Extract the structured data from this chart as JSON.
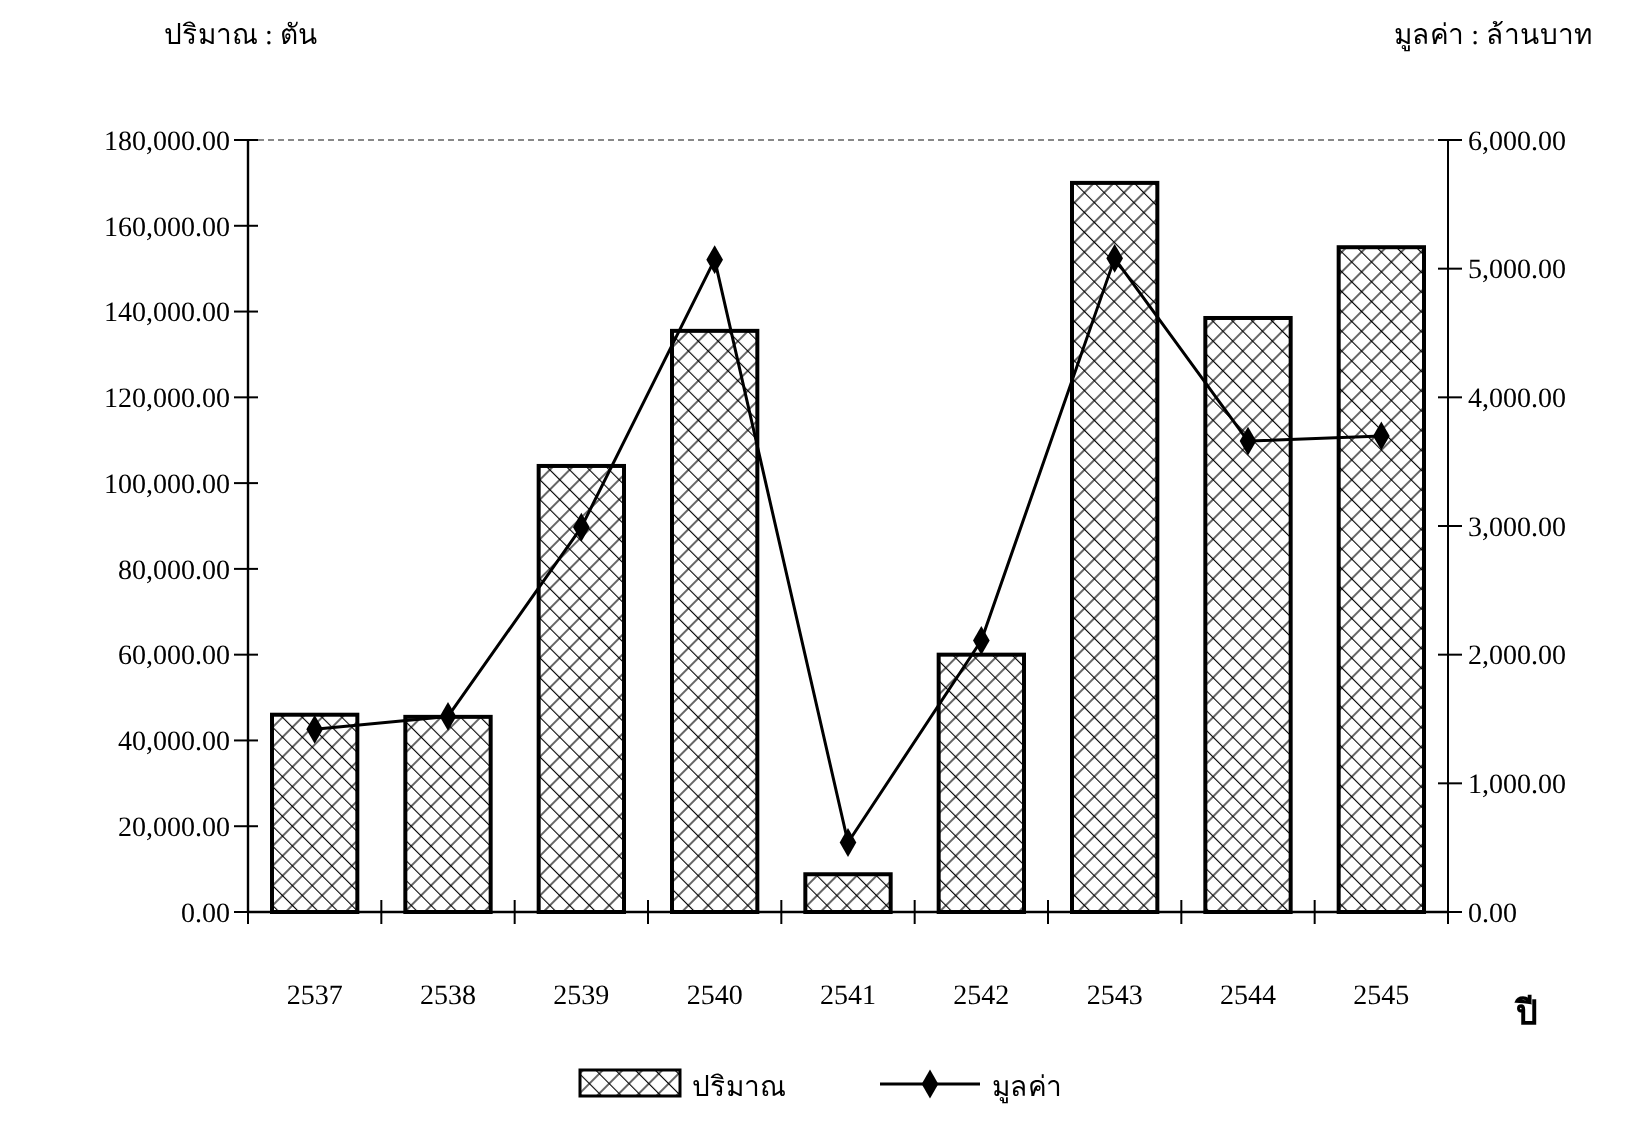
{
  "chart_data": {
    "type": "bar",
    "ylabel": "ปริมาณ : ตัน",
    "y2label": "มูลค่า : ล้านบาท",
    "xlabel": "ปี",
    "categories": [
      "2537",
      "2538",
      "2539",
      "2540",
      "2541",
      "2542",
      "2543",
      "2544",
      "2545"
    ],
    "series": [
      {
        "name": "ปริมาณ",
        "color": "#000000",
        "values": [
          46000,
          45500,
          104000,
          135500,
          8800,
          60000,
          170000,
          138500,
          155000
        ]
      },
      {
        "name": "มูลค่า",
        "type": "line",
        "axis": "y2",
        "color": "#000000",
        "marker": "diamond",
        "values": [
          1420,
          1520,
          2990,
          5070,
          540,
          2110,
          5080,
          3660,
          3700
        ]
      }
    ],
    "ylim": [
      0,
      180000
    ],
    "yticks": [
      {
        "value": 0,
        "label": "0.00"
      },
      {
        "value": 20000,
        "label": "20,000.00"
      },
      {
        "value": 40000,
        "label": "40,000.00"
      },
      {
        "value": 60000,
        "label": "60,000.00"
      },
      {
        "value": 80000,
        "label": "80,000.00"
      },
      {
        "value": 100000,
        "label": "100,000.00"
      },
      {
        "value": 120000,
        "label": "120,000.00"
      },
      {
        "value": 140000,
        "label": "140,000.00"
      },
      {
        "value": 160000,
        "label": "160,000.00"
      },
      {
        "value": 180000,
        "label": "180,000.00"
      }
    ],
    "y2lim": [
      0,
      6000
    ],
    "y2ticks": [
      {
        "value": 0,
        "label": "0.00"
      },
      {
        "value": 1000,
        "label": "1,000.00"
      },
      {
        "value": 2000,
        "label": "2,000.00"
      },
      {
        "value": 3000,
        "label": "3,000.00"
      },
      {
        "value": 4000,
        "label": "4,000.00"
      },
      {
        "value": 5000,
        "label": "5,000.00"
      },
      {
        "value": 6000,
        "label": "6,000.00"
      }
    ],
    "grid": false,
    "legend": "bottom"
  }
}
